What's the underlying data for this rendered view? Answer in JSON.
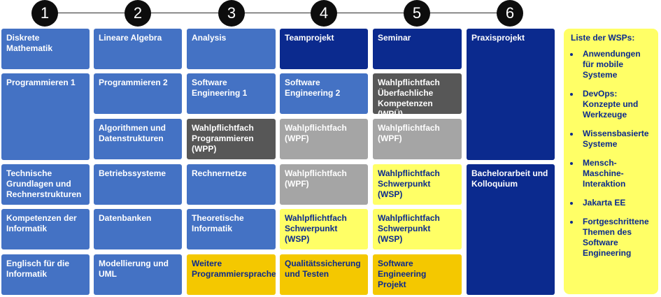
{
  "semesters": [
    "1",
    "2",
    "3",
    "4",
    "5",
    "6"
  ],
  "modules": {
    "m1_1": "Diskrete Mathematik",
    "m1_2": "Programmieren 1",
    "m1_3": "Technische Grundlagen und Rechnerstrukturen",
    "m1_4": "Kompetenzen der Informatik",
    "m1_5": "Englisch für die Informatik",
    "m2_1": "Lineare Algebra",
    "m2_2": "Programmieren 2",
    "m2_3": "Algorithmen und Datenstrukturen",
    "m2_4": "Betriebssysteme",
    "m2_5": "Datenbanken",
    "m2_6": "Modellierung und UML",
    "m3_1": "Analysis",
    "m3_2": "Software Engineering 1",
    "m3_3": "Wahlpflichtfach Programmieren (WPP)",
    "m3_4": "Rechnernetze",
    "m3_5": "Theoretische Informatik",
    "m3_6": "Weitere Programmiersprache",
    "m4_1": "Teamprojekt",
    "m4_2": "Software Engineering 2",
    "m4_3": "Wahlpflichtfach (WPF)",
    "m4_4": "Wahlpflichtfach (WPF)",
    "m4_5": "Wahlpflichtfach Schwerpunkt (WSP)",
    "m4_6": "Qualitätssicherung und Testen",
    "m5_1": "Seminar",
    "m5_2": "Wahlpflichtfach Überfachliche Kompetenzen (WPÜ)",
    "m5_3": "Wahlpflichtfach (WPF)",
    "m5_4": "Wahlpflichtfach Schwerpunkt (WSP)",
    "m5_5": "Wahlpflichtfach Schwerpunkt (WSP)",
    "m5_6": "Software Engineering Projekt",
    "m6_1": "Praxisprojekt",
    "m6_2": "Bachelorarbeit und Kolloquium"
  },
  "wsp_panel": {
    "title": "Liste der WSPs:",
    "items": [
      "Anwendungen für mobile Systeme",
      "DevOps: Konzepte und Werkzeuge",
      "Wissensbasierte Systeme",
      "Mensch-Maschine-Interaktion",
      "Jakarta EE",
      "Fortgeschrittene Themen des Software Engineering"
    ]
  },
  "colors": {
    "pflicht": "#4472c4",
    "projekt": "#0b2a8e",
    "wahlpflicht_dunkel": "#575757",
    "wahlpflicht_hell": "#a5a5a5",
    "schwerpunkt": "#ffff66",
    "weitere": "#f4c800"
  }
}
